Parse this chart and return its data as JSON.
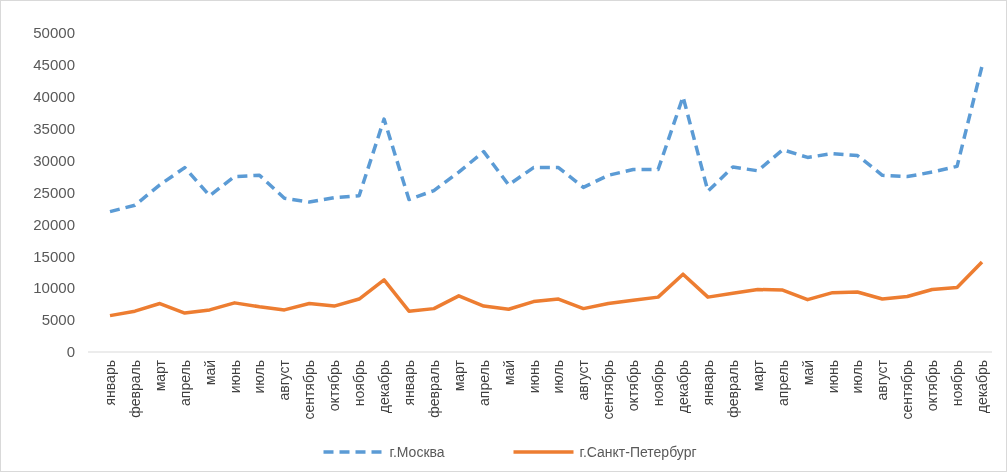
{
  "chart_data": {
    "type": "line",
    "categories": [
      "январь",
      "февраль",
      "март",
      "апрель",
      "май",
      "июнь",
      "июль",
      "август",
      "сентябрь",
      "октябрь",
      "ноябрь",
      "декабрь",
      "январь",
      "февраль",
      "март",
      "апрель",
      "май",
      "июнь",
      "июль",
      "август",
      "сентябрь",
      "октябрь",
      "ноябрь",
      "декабрь",
      "январь",
      "февраль",
      "март",
      "апрель",
      "май",
      "июнь",
      "июль",
      "август",
      "сентябрь",
      "октябрь",
      "ноябрь",
      "декабрь"
    ],
    "series": [
      {
        "name": "г.Москва",
        "color": "#5b9bd5",
        "line_style": "dashed",
        "values": [
          22000,
          23000,
          26200,
          28900,
          24500,
          27500,
          27700,
          24100,
          23500,
          24200,
          24500,
          36500,
          23900,
          25300,
          28200,
          31400,
          26200,
          28900,
          28900,
          25800,
          27700,
          28600,
          28600,
          40000,
          25200,
          29000,
          28400,
          31700,
          30500,
          31100,
          30800,
          27700,
          27500,
          28200,
          29100,
          44800
        ]
      },
      {
        "name": "г.Санкт-Петербург",
        "color": "#ed7d31",
        "line_style": "solid",
        "values": [
          5700,
          6400,
          7600,
          6100,
          6600,
          7700,
          7100,
          6600,
          7600,
          7200,
          8300,
          11300,
          6400,
          6800,
          8800,
          7200,
          6700,
          7900,
          8300,
          6800,
          7600,
          8100,
          8600,
          12200,
          8600,
          9200,
          9800,
          9700,
          8200,
          9300,
          9400,
          8300,
          8700,
          9800,
          10100,
          14100
        ]
      }
    ],
    "ylim": [
      0,
      50000
    ],
    "yticks": [
      0,
      5000,
      10000,
      15000,
      20000,
      25000,
      30000,
      35000,
      40000,
      45000,
      50000
    ],
    "grid": false,
    "legend": "bottom",
    "marker": "none"
  }
}
